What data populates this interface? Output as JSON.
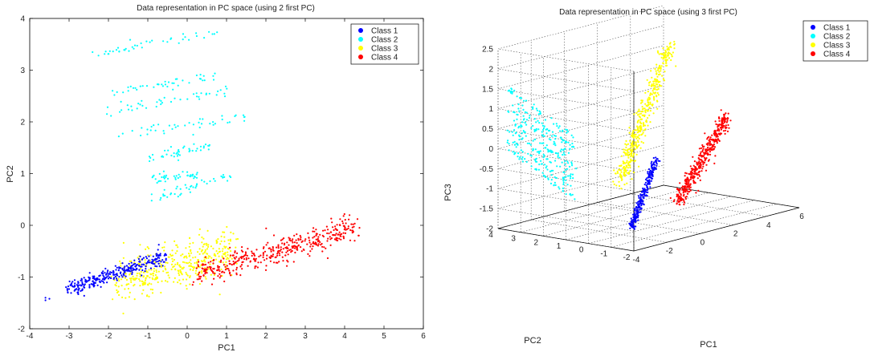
{
  "chart_data": [
    {
      "type": "scatter",
      "title": "Data representation in PC space (using 2 first PC)",
      "xlabel": "PC1",
      "ylabel": "PC2",
      "xlim": [
        -4,
        6
      ],
      "ylim": [
        -2,
        4
      ],
      "xticks": [
        "-4",
        "-3",
        "-2",
        "-1",
        "0",
        "1",
        "2",
        "3",
        "4",
        "5",
        "6"
      ],
      "yticks": [
        "-2",
        "-1",
        "0",
        "1",
        "2",
        "3",
        "4"
      ],
      "grid": false,
      "legend_position": "top-right",
      "series": [
        {
          "name": "Class 1",
          "color": "#0000ff",
          "description": "dense elongated band",
          "from": [
            -3.1,
            -1.27
          ],
          "to": [
            -0.5,
            -0.58
          ],
          "spread": 0.07,
          "outliers": [
            [
              -3.6,
              -1.45
            ],
            [
              -3.6,
              -1.4
            ],
            [
              -3.5,
              -1.42
            ]
          ]
        },
        {
          "name": "Class 2",
          "color": "#00ffff",
          "bands": [
            {
              "from": [
                -2.4,
                3.3
              ],
              "to": [
                0.8,
                3.75
              ]
            },
            {
              "from": [
                -2.0,
                2.55
              ],
              "to": [
                0.8,
                2.9
              ]
            },
            {
              "from": [
                -2.1,
                2.2
              ],
              "to": [
                1.0,
                2.6
              ]
            },
            {
              "from": [
                -1.8,
                1.75
              ],
              "to": [
                1.5,
                2.1
              ]
            },
            {
              "from": [
                -1.0,
                1.3
              ],
              "to": [
                0.6,
                1.5
              ]
            },
            {
              "from": [
                -0.9,
                0.9
              ],
              "to": [
                0.4,
                1.0
              ]
            },
            {
              "from": [
                -0.9,
                0.5
              ],
              "to": [
                1.1,
                0.95
              ]
            }
          ]
        },
        {
          "name": "Class 3",
          "color": "#ffff00",
          "description": "broad elongated cloud",
          "from": [
            -1.8,
            -1.05
          ],
          "to": [
            1.2,
            -0.5
          ],
          "spread": 0.22
        },
        {
          "name": "Class 4",
          "color": "#ff0000",
          "description": "elongated cloud",
          "from": [
            0.2,
            -0.95
          ],
          "to": [
            4.3,
            -0.05
          ],
          "spread": 0.13
        }
      ]
    },
    {
      "type": "scatter",
      "title": "Data representation in PC space (using 3 first PC)",
      "xlabel": "PC1",
      "ylabel": "PC2",
      "zlabel": "PC3",
      "xlim": [
        -4,
        6
      ],
      "ylim": [
        -2,
        4
      ],
      "zlim": [
        -2,
        2.5
      ],
      "xticks": [
        "-4",
        "-2",
        "0",
        "2",
        "4",
        "6"
      ],
      "yticks": [
        "-2",
        "-1",
        "0",
        "1",
        "2",
        "3",
        "4"
      ],
      "zticks": [
        "-2",
        "-1.5",
        "-1",
        "-0.5",
        "0",
        "0.5",
        "1",
        "1.5",
        "2",
        "2.5"
      ],
      "grid": true,
      "legend_position": "top-right",
      "series": [
        {
          "name": "Class 1",
          "color": "#0000ff"
        },
        {
          "name": "Class 2",
          "color": "#00ffff"
        },
        {
          "name": "Class 3",
          "color": "#ffff00"
        },
        {
          "name": "Class 4",
          "color": "#ff0000"
        }
      ]
    }
  ]
}
